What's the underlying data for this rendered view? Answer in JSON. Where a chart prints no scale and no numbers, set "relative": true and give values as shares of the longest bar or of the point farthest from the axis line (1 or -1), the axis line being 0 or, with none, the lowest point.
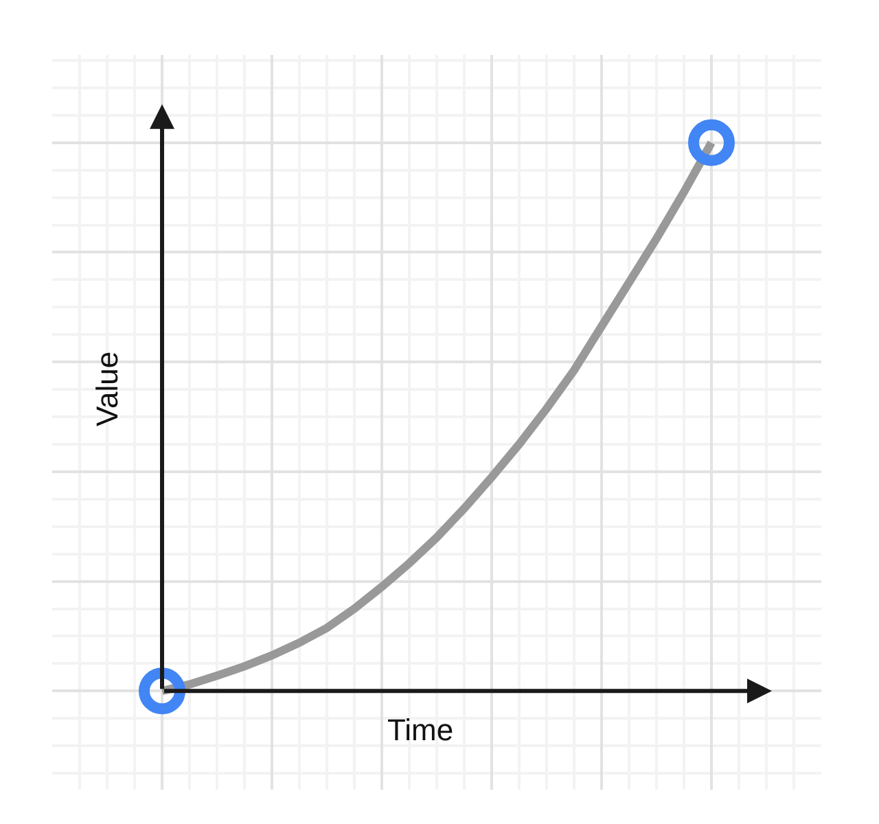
{
  "chart_data": {
    "type": "line",
    "relative": true,
    "xlabel": "Time",
    "ylabel": "Value",
    "grid": true,
    "categories": [
      null,
      null,
      null,
      null,
      null,
      null,
      null,
      null,
      null,
      null,
      null,
      null,
      null,
      null,
      null,
      null,
      null,
      null,
      null,
      null,
      null
    ],
    "series": [
      {
        "color": "#999999",
        "colors": [
          "#4285f4",
          null,
          null,
          null,
          null,
          null,
          null,
          null,
          null,
          null,
          null,
          null,
          null,
          null,
          null,
          null,
          null,
          null,
          null,
          null,
          "#4285f4"
        ],
        "values": [
          0,
          0.012,
          0.028,
          0.045,
          0.065,
          0.088,
          0.115,
          0.15,
          0.19,
          0.233,
          0.28,
          0.333,
          0.39,
          0.45,
          0.515,
          0.585,
          0.665,
          0.745,
          0.825,
          0.91,
          1
        ]
      }
    ]
  }
}
